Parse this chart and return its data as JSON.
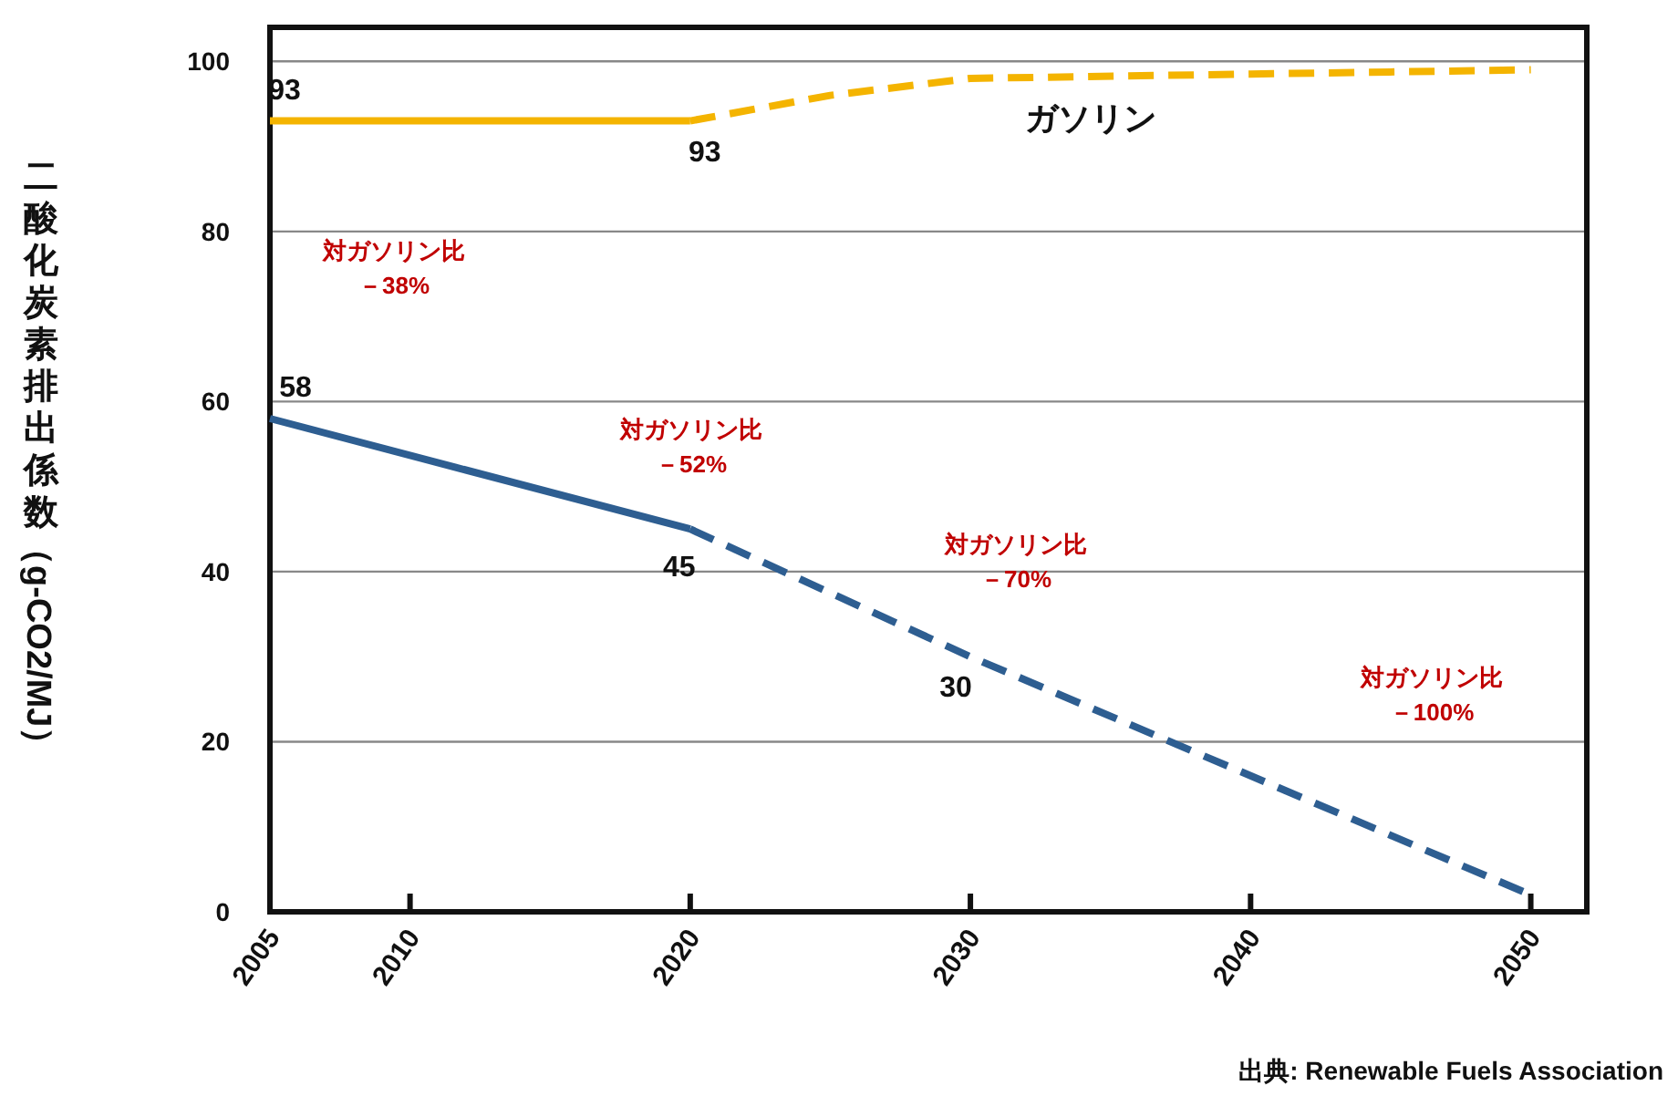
{
  "chart_data": {
    "type": "line",
    "ylabel": "二酸化炭素排出係数（g-CO2/MJ）",
    "xlim": [
      2005,
      2052
    ],
    "xticks": [
      2005,
      2010,
      2020,
      2030,
      2040,
      2050
    ],
    "ylim": [
      0,
      104
    ],
    "yticks": [
      0,
      20,
      40,
      60,
      80,
      100
    ],
    "grid": "y",
    "legend": false,
    "marker": "none",
    "series": [
      {
        "x": [
          2005,
          2020
        ],
        "values": [
          93,
          93
        ],
        "color": "#f4b400",
        "line_style": "solid",
        "value_labels": [
          "93",
          "93"
        ]
      },
      {
        "name": "ガソリン",
        "x": [
          2020,
          2025,
          2030,
          2040,
          2050
        ],
        "values": [
          93,
          96,
          98,
          98.5,
          99
        ],
        "color": "#f4b400",
        "line_style": "dashed"
      },
      {
        "x": [
          2005,
          2020
        ],
        "values": [
          58,
          45
        ],
        "color": "#2e5e91",
        "line_style": "solid",
        "value_labels": [
          "58",
          "45"
        ]
      },
      {
        "x": [
          2020,
          2030,
          2050
        ],
        "values": [
          45,
          30,
          2
        ],
        "color": "#2e5e91",
        "line_style": "dashed",
        "value_labels": [
          null,
          "30",
          null
        ]
      }
    ],
    "annotations": [
      "対ガソリン比－38%",
      "対ガソリン比－52%",
      "対ガソリン比－70%",
      "対ガソリン比－100%",
      "出典: Renewable Fuels Association"
    ]
  }
}
